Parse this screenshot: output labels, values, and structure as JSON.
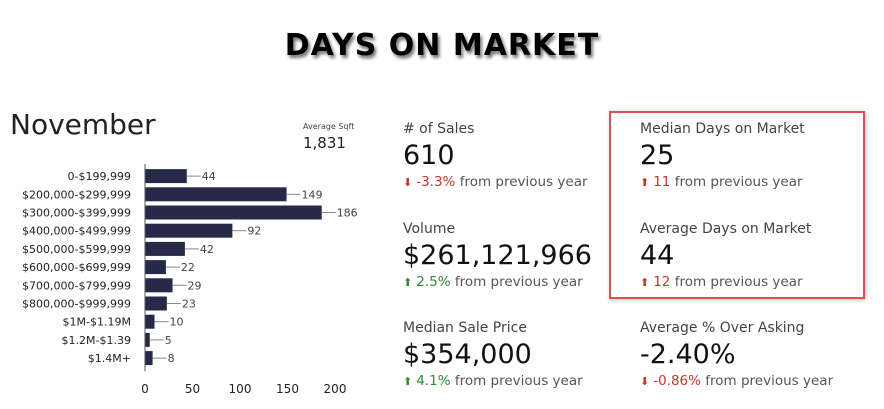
{
  "title": "DAYS ON MARKET",
  "month": "November",
  "average_sqft": {
    "label": "Average Sqft",
    "value": "1,831"
  },
  "stats": {
    "sales": {
      "label": "# of Sales",
      "value": "610",
      "change": "-3.3%",
      "change_text": "from previous year",
      "direction": "down"
    },
    "volume": {
      "label": "Volume",
      "value": "$261,121,966",
      "change": "2.5%",
      "change_text": "from previous year",
      "direction": "up"
    },
    "median_price": {
      "label": "Median Sale Price",
      "value": "$354,000",
      "change": "4.1%",
      "change_text": "from previous year",
      "direction": "up"
    },
    "median_dom": {
      "label": "Median Days on Market",
      "value": "25",
      "change": "11",
      "change_text": "from previous year",
      "direction": "up"
    },
    "avg_dom": {
      "label": "Average Days on Market",
      "value": "44",
      "change": "12",
      "change_text": "from previous year",
      "direction": "up"
    },
    "over_asking": {
      "label": "Average % Over Asking",
      "value": "-2.40%",
      "change": "-0.86%",
      "change_text": "from previous year",
      "direction": "down"
    }
  },
  "colors": {
    "bar": "#272949",
    "down": "#c0392b",
    "up": "#2e8b3a",
    "highlight": "#e05050"
  },
  "chart_data": {
    "type": "bar",
    "orientation": "horizontal",
    "categories": [
      "0-$199,999",
      "$200,000-$299,999",
      "$300,000-$399,999",
      "$400,000-$499,999",
      "$500,000-$599,999",
      "$600,000-$699,999",
      "$700,000-$799,999",
      "$800,000-$999,999",
      "$1M-$1.19M",
      "$1.2M-$1.39",
      "$1.4M+"
    ],
    "values": [
      44,
      149,
      186,
      92,
      42,
      22,
      29,
      23,
      10,
      5,
      8
    ],
    "xlim": [
      0,
      200
    ],
    "xticks": [
      0,
      50,
      100,
      150,
      200
    ],
    "grid": false
  }
}
